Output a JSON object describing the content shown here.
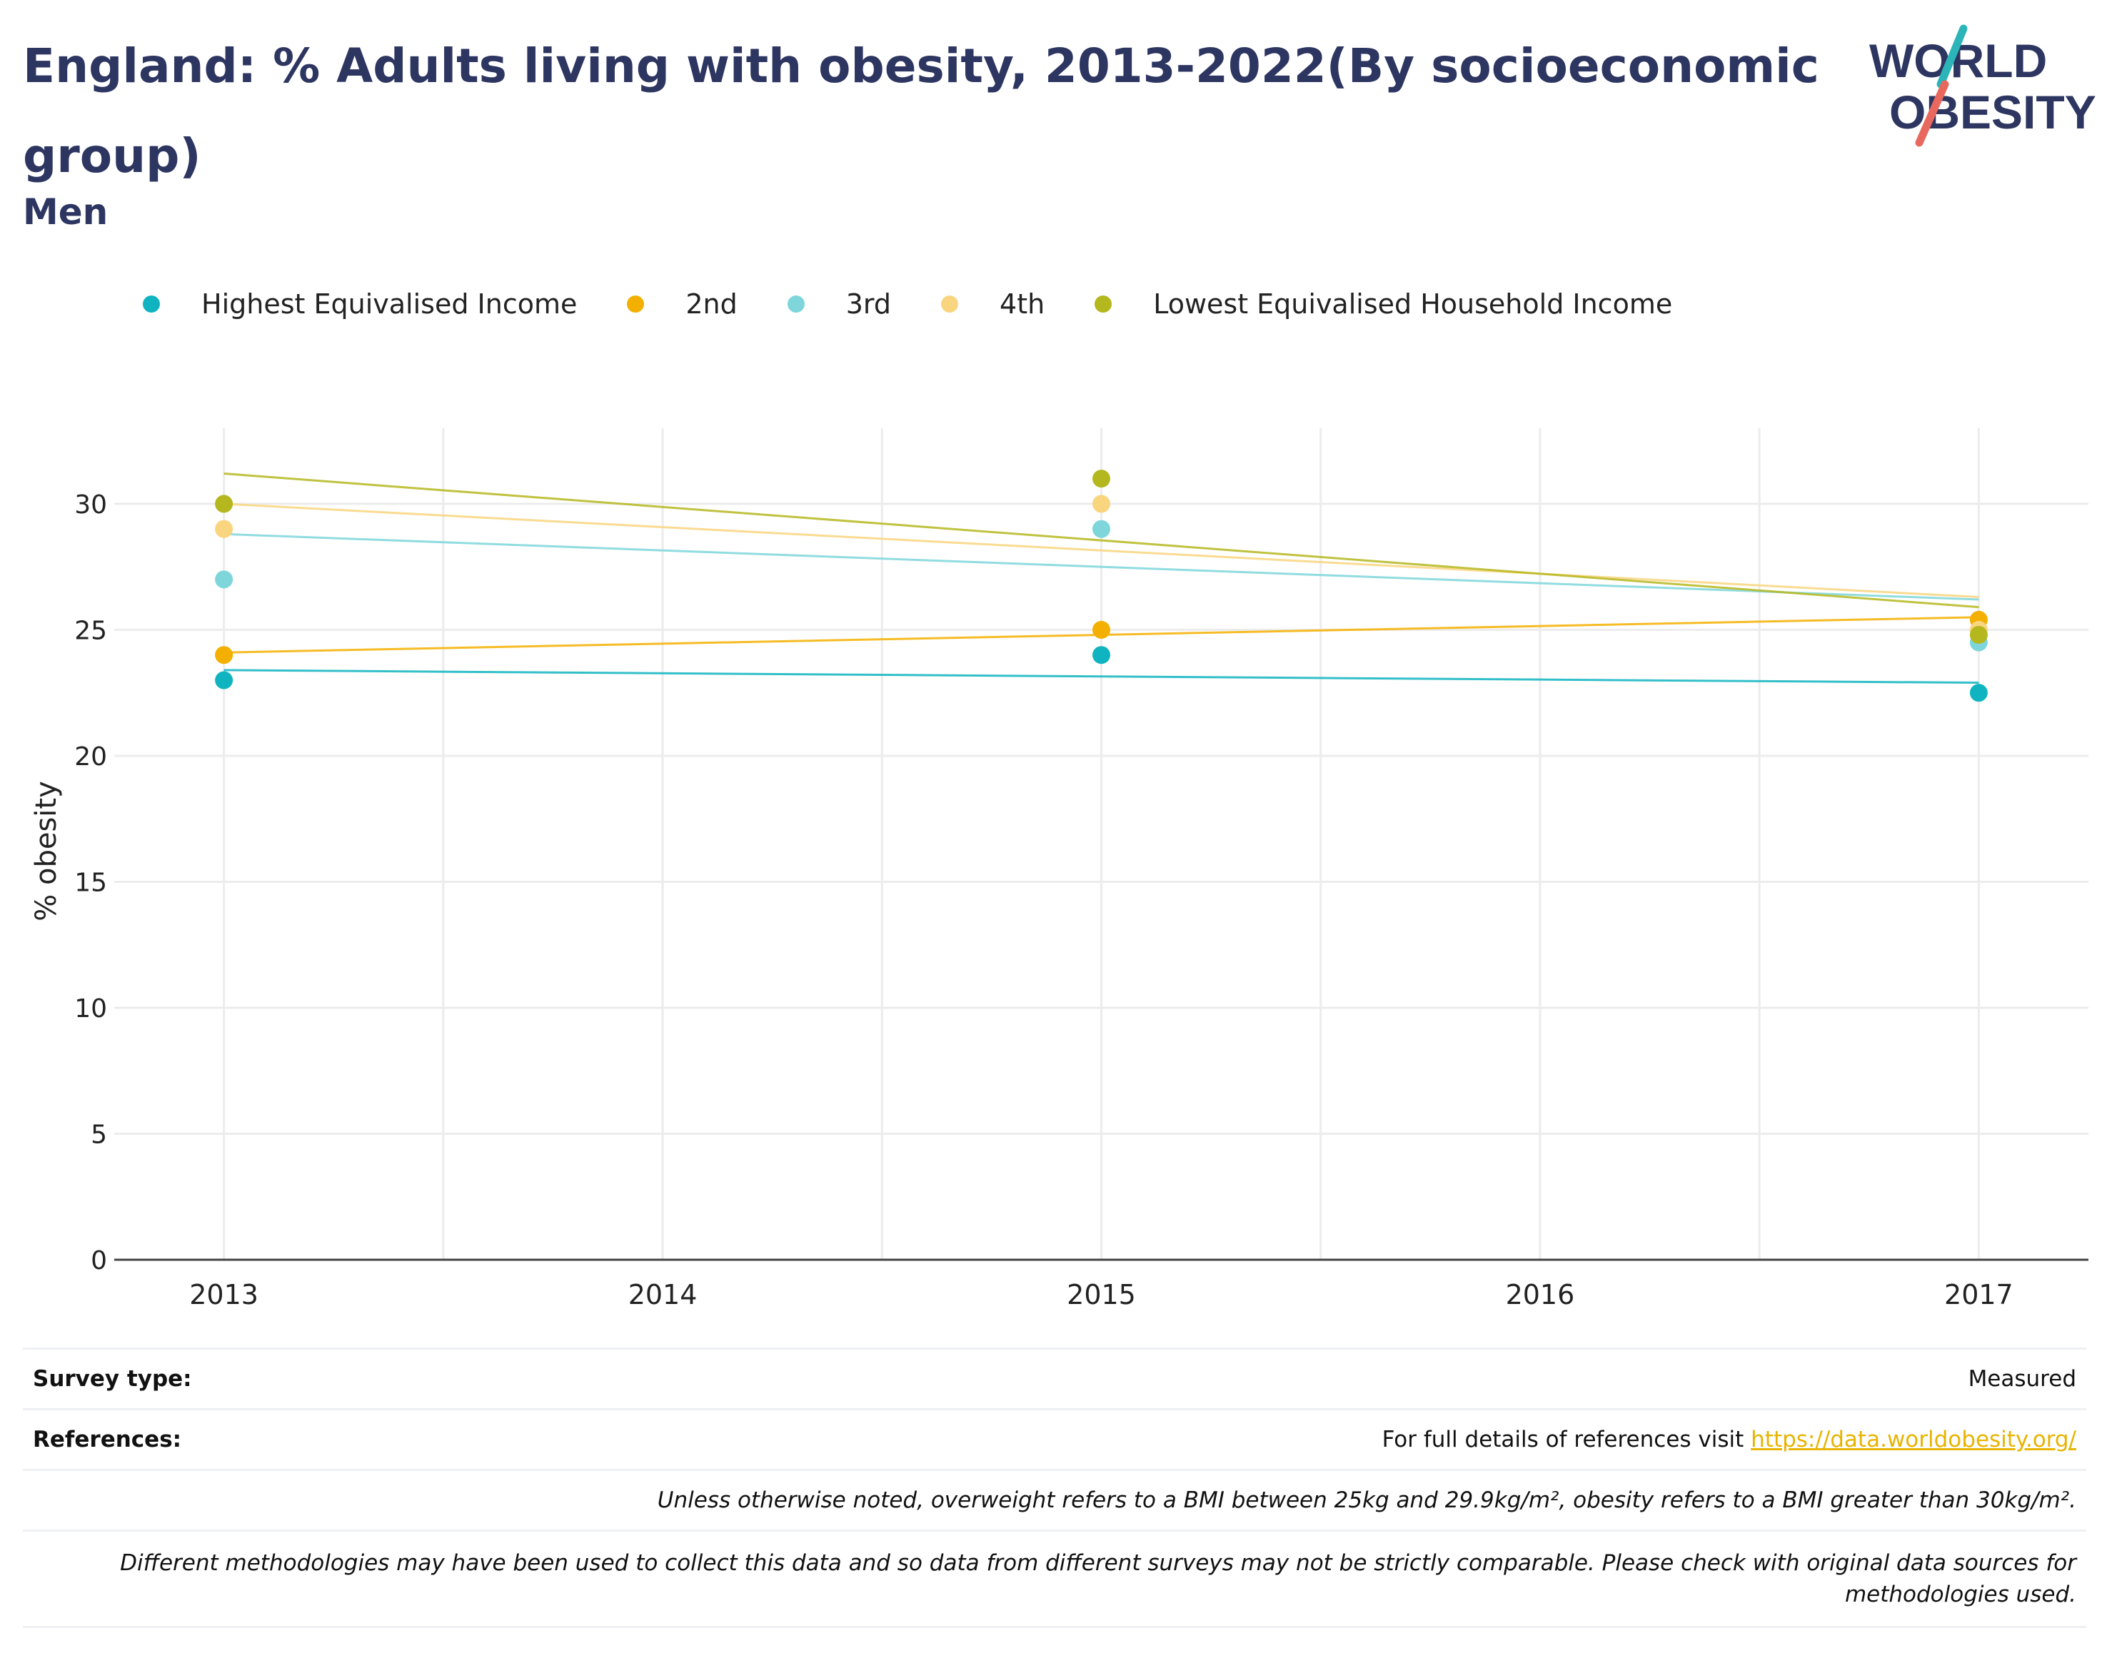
{
  "header": {
    "title": "England: % Adults living with obesity, 2013-2022(By socioeconomic group)",
    "subtitle": "Men"
  },
  "logo": {
    "line1": "WORLD",
    "line2": "OBESITY"
  },
  "colors": {
    "title": "#2d3561",
    "highest": "#0fb4c0",
    "second": "#f4b000",
    "third": "#7ed6db",
    "fourth": "#f9d57f",
    "lowest": "#b5b71e",
    "link": "#e8b400"
  },
  "chart_data": {
    "type": "scatter",
    "title": "England: % Adults living with obesity, 2013-2022(By socioeconomic group)",
    "subtitle": "Men",
    "xlabel": "",
    "ylabel": "% obesity",
    "xlim": [
      2012.75,
      2017.25
    ],
    "ylim": [
      0,
      33
    ],
    "x_ticks": [
      "2013",
      "2014",
      "2015",
      "2016",
      "2017"
    ],
    "y_ticks": [
      "0",
      "5",
      "10",
      "15",
      "20",
      "25",
      "30"
    ],
    "grid": true,
    "legend_position": "top",
    "trendlines": true,
    "series": [
      {
        "name": "Highest Equivalised Income",
        "color": "#0fb4c0",
        "points": [
          {
            "x": 2013,
            "y": 23
          },
          {
            "x": 2015,
            "y": 24
          },
          {
            "x": 2017,
            "y": 22.5
          }
        ],
        "trend": [
          23.4,
          22.9
        ]
      },
      {
        "name": "2nd",
        "color": "#f4b000",
        "points": [
          {
            "x": 2013,
            "y": 24
          },
          {
            "x": 2015,
            "y": 25
          },
          {
            "x": 2017,
            "y": 25.4
          }
        ],
        "trend": [
          24.1,
          25.5
        ]
      },
      {
        "name": "3rd",
        "color": "#7ed6db",
        "points": [
          {
            "x": 2013,
            "y": 27
          },
          {
            "x": 2015,
            "y": 29
          },
          {
            "x": 2017,
            "y": 24.5
          }
        ],
        "trend": [
          28.8,
          26.2
        ]
      },
      {
        "name": "4th",
        "color": "#f9d57f",
        "points": [
          {
            "x": 2013,
            "y": 29
          },
          {
            "x": 2015,
            "y": 30
          },
          {
            "x": 2017,
            "y": 25
          }
        ],
        "trend": [
          30.0,
          26.3
        ]
      },
      {
        "name": "Lowest Equivalised Household Income",
        "color": "#b5b71e",
        "points": [
          {
            "x": 2013,
            "y": 30
          },
          {
            "x": 2015,
            "y": 31
          },
          {
            "x": 2017,
            "y": 24.8
          }
        ],
        "trend": [
          31.2,
          25.9
        ]
      }
    ]
  },
  "footer": {
    "survey_label": "Survey type:",
    "survey_value": "Measured",
    "references_label": "References:",
    "references_text": "For full details of references visit ",
    "references_link": "https://data.worldobesity.org/",
    "note1": "Unless otherwise noted, overweight refers to a BMI between 25kg and 29.9kg/m², obesity refers to a BMI greater than 30kg/m².",
    "note2": "Different methodologies may have been used to collect this data and so data from different surveys may not be strictly comparable. Please check with original data sources for methodologies used."
  }
}
